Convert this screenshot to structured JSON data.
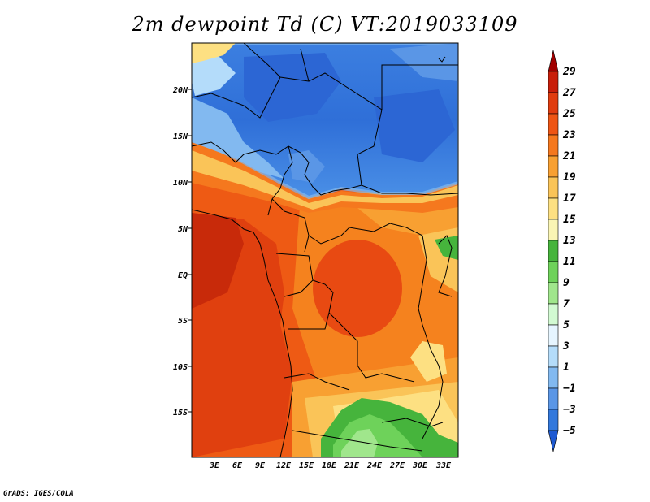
{
  "title": "2m dewpoint Td (C) VT:2019033109",
  "credit": "GrADS: IGES/COLA",
  "map": {
    "lat_labels": [
      "20N",
      "15N",
      "10N",
      "5N",
      "EQ",
      "5S",
      "10S",
      "15S"
    ],
    "lon_labels": [
      "3E",
      "6E",
      "9E",
      "12E",
      "15E",
      "18E",
      "21E",
      "24E",
      "27E",
      "30E",
      "33E"
    ],
    "field_description": "Dewpoint field: low values (blue, -5 to 1) over the Sahara/Sahel north of ~9N; high values (red/orange, 23-27) over Gulf of Guinea, Congo basin and Atlantic coast; moderate (green, 9-13) over Zambia/Angola south."
  },
  "colorbar": {
    "levels": [
      "29",
      "27",
      "25",
      "23",
      "21",
      "19",
      "17",
      "15",
      "13",
      "11",
      "9",
      "7",
      "5",
      "3",
      "1",
      "−1",
      "−3",
      "−5"
    ],
    "colors": [
      "#a00000",
      "#c81e0a",
      "#e03c0f",
      "#ee5514",
      "#f5781e",
      "#f8a032",
      "#fac458",
      "#fde082",
      "#faf5b4",
      "#46b43c",
      "#6ed25a",
      "#a0e68c",
      "#d2fad2",
      "#e6f5ff",
      "#b4dcfa",
      "#82b9f0",
      "#5a96e6",
      "#3278dc",
      "#1e5ad2"
    ]
  }
}
